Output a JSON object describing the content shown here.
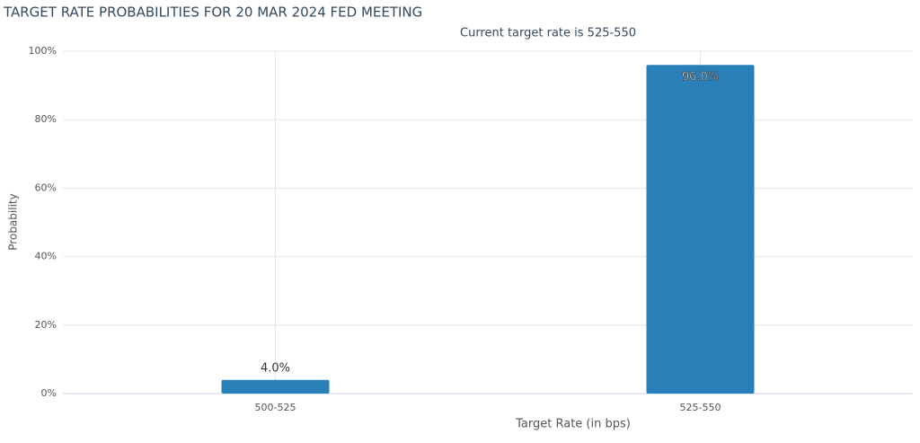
{
  "chart_data": {
    "type": "bar",
    "title": "TARGET RATE PROBABILITIES FOR 20 MAR 2024 FED MEETING",
    "subtitle": "Current target rate is 525-550",
    "x_label": "Target Rate (in bps)",
    "y_label": "Probability",
    "categories": [
      "500-525",
      "525-550"
    ],
    "values": [
      4.0,
      96.0
    ],
    "value_labels": [
      "4.0%",
      "96.0%"
    ],
    "color": "#2980b9",
    "ylim": [
      0,
      100
    ],
    "yticks": [
      {
        "value": 0,
        "label": "0%"
      },
      {
        "value": 20,
        "label": "20%"
      },
      {
        "value": 40,
        "label": "40%"
      },
      {
        "value": 60,
        "label": "60%"
      },
      {
        "value": 80,
        "label": "80%"
      },
      {
        "value": 100,
        "label": "100%"
      }
    ],
    "grid": true
  }
}
